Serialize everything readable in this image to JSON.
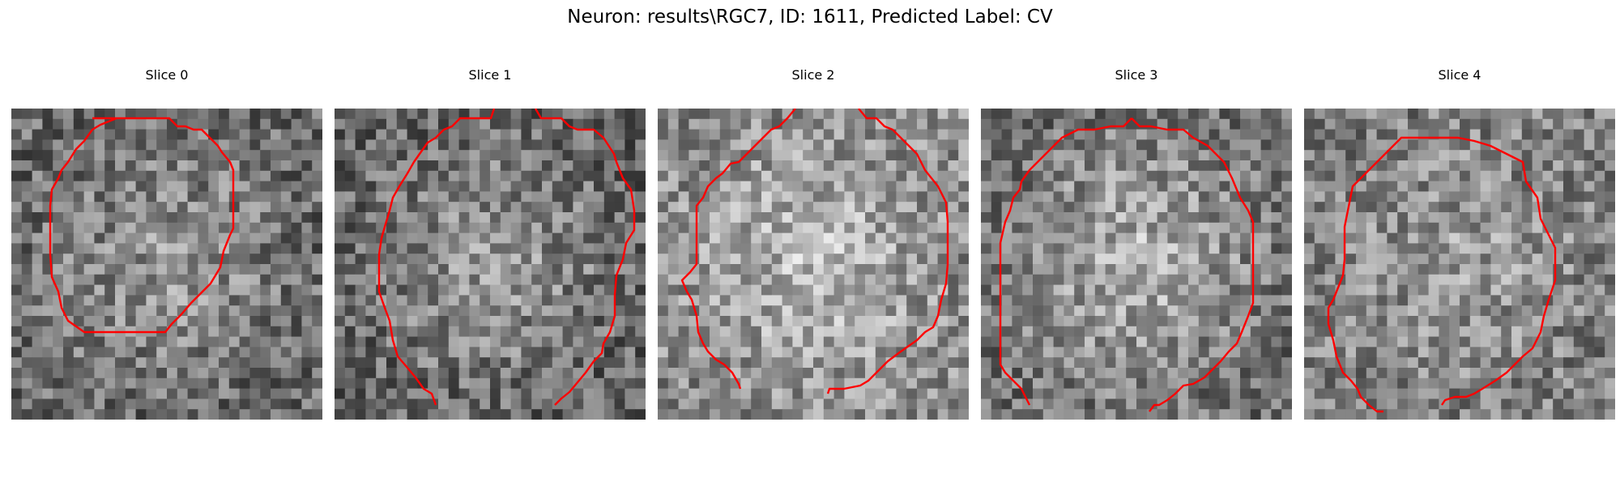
{
  "figure": {
    "title": "Neuron: results\\RGC7, ID: 1611, Predicted Label: CV"
  },
  "panels": [
    {
      "title": "Slice 0",
      "seed": 11,
      "center_brightness": 0.6,
      "edge_brightness": 0.42
    },
    {
      "title": "Slice 1",
      "seed": 23,
      "center_brightness": 0.62,
      "edge_brightness": 0.4
    },
    {
      "title": "Slice 2",
      "seed": 37,
      "center_brightness": 0.74,
      "edge_brightness": 0.55
    },
    {
      "title": "Slice 3",
      "seed": 53,
      "center_brightness": 0.72,
      "edge_brightness": 0.45
    },
    {
      "title": "Slice 4",
      "seed": 71,
      "center_brightness": 0.62,
      "edge_brightness": 0.5
    }
  ],
  "colors": {
    "contour": "#ff0000"
  }
}
